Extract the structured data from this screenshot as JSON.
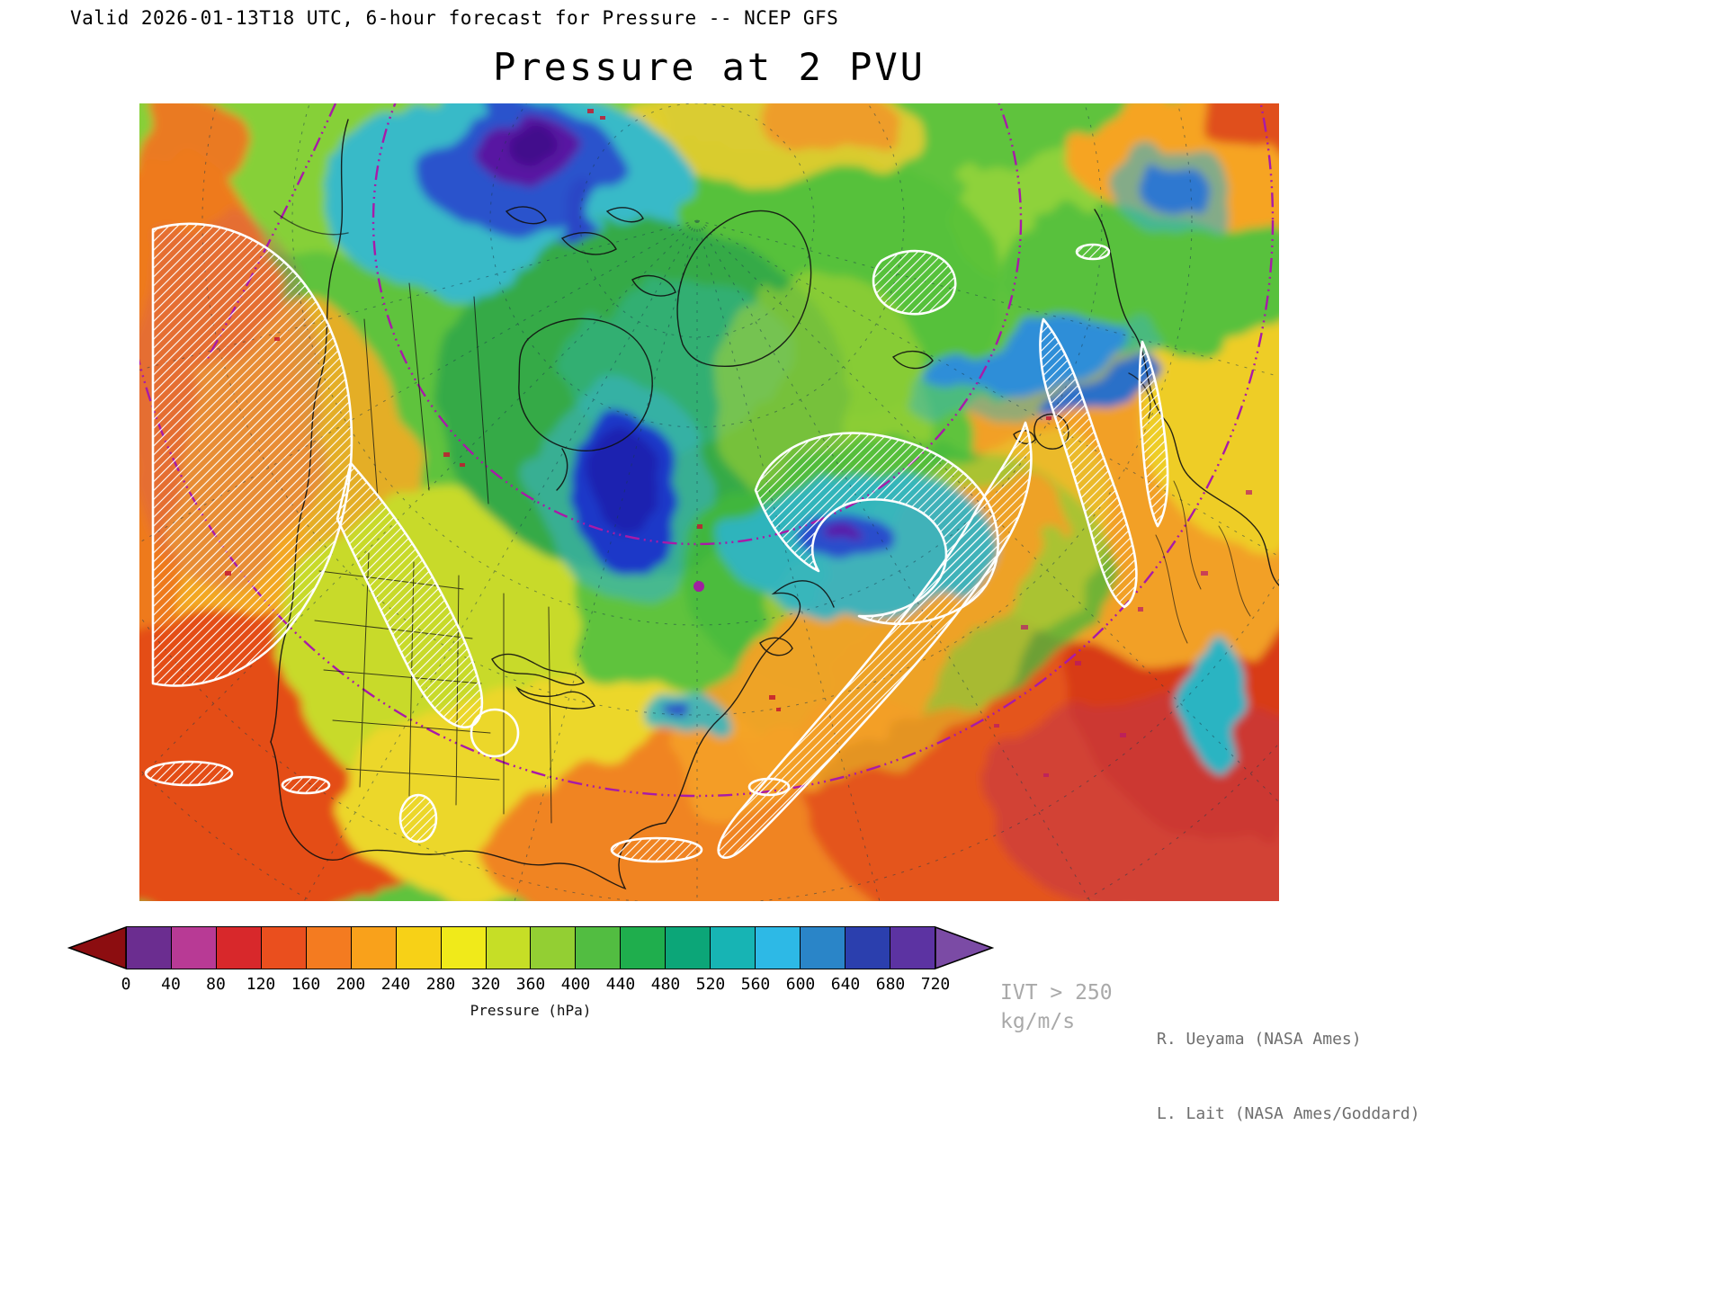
{
  "header": {
    "valid_line": "Valid 2026-01-13T18 UTC, 6-hour forecast for Pressure -- NCEP GFS"
  },
  "title": "Pressure at 2 PVU",
  "colorbar": {
    "label": "Pressure (hPa)",
    "ticks": [
      "0",
      "40",
      "80",
      "120",
      "160",
      "200",
      "240",
      "280",
      "320",
      "360",
      "400",
      "440",
      "480",
      "520",
      "560",
      "600",
      "640",
      "680",
      "720"
    ],
    "segment_colors": [
      "#6b2d90",
      "#b83a95",
      "#d8282b",
      "#ea4f1e",
      "#f47b20",
      "#f9a11b",
      "#f7d117",
      "#f0ea1a",
      "#c6de26",
      "#93cf33",
      "#52bd41",
      "#1fae4d",
      "#0ca678",
      "#17b4b4",
      "#2db9e6",
      "#2a85c8",
      "#2b3fae",
      "#5c33a2"
    ],
    "left_arrow_color": "#8c0d10",
    "right_arrow_color": "#7b4ba5"
  },
  "annotations": {
    "ivt_line1": "IVT > 250",
    "ivt_line2": "kg/m/s"
  },
  "credits": {
    "line1": "R. Ueyama (NASA Ames)",
    "line2": "L. Lait (NASA Ames/Goddard)"
  }
}
